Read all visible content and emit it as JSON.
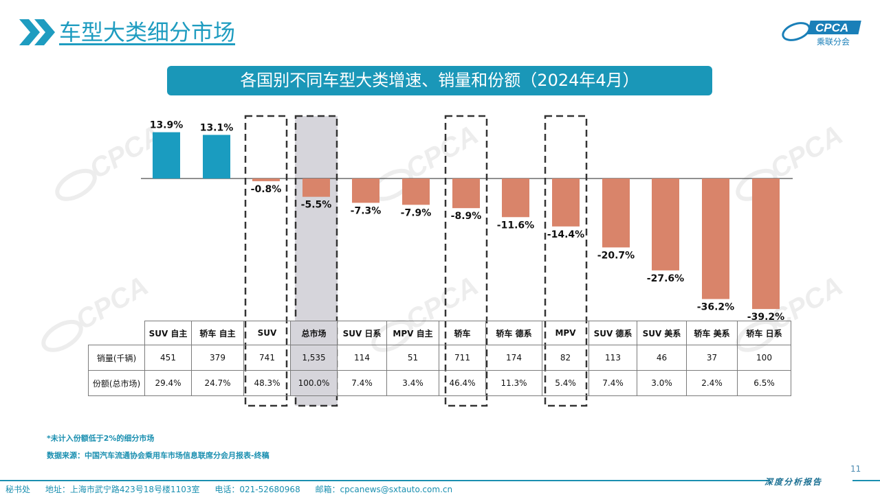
{
  "header": {
    "page_title": "车型大类细分市场",
    "logo_text": "CPCA",
    "logo_sub": "乘联分会"
  },
  "banner": {
    "title": "各国别不同车型大类增速、销量和份额（2024年4月）"
  },
  "colors": {
    "positive": "#1a9cc0",
    "negative": "#d9846a",
    "highlight": "#d6d5db",
    "accent": "#1a97b8"
  },
  "chart_data": {
    "type": "bar",
    "title": "各国别不同车型大类增速、销量和份额（2024年4月）",
    "categories": [
      "SUV 自主",
      "轿车 自主",
      "SUV",
      "总市场",
      "SUV 日系",
      "MPV 自主",
      "轿车",
      "轿车 德系",
      "MPV",
      "SUV 德系",
      "SUV 美系",
      "轿车 美系",
      "轿车 日系"
    ],
    "values": [
      13.9,
      13.1,
      -0.8,
      -5.5,
      -7.3,
      -7.9,
      -8.9,
      -11.6,
      -14.4,
      -20.7,
      -27.6,
      -36.2,
      -39.2
    ],
    "labels": [
      "13.9%",
      "13.1%",
      "-0.8%",
      "-5.5%",
      "-7.3%",
      "-7.9%",
      "-8.9%",
      "-11.6%",
      "-14.4%",
      "-20.7%",
      "-27.6%",
      "-36.2%",
      "-39.2%"
    ],
    "unit": "%",
    "ylim": [
      -40,
      14.5
    ],
    "dashed_boxes": [
      "SUV",
      "总市场",
      "轿车",
      "MPV"
    ],
    "highlighted": [
      "总市场"
    ]
  },
  "table": {
    "header": [
      "",
      "SUV 自主",
      "轿车 自主",
      "SUV",
      "总市场",
      "SUV 日系",
      "MPV 自主",
      "轿车",
      "轿车 德系",
      "MPV",
      "SUV 德系",
      "SUV 美系",
      "轿车 美系",
      "轿车 日系"
    ],
    "rows": [
      {
        "label": "销量(千辆)",
        "cells": [
          "451",
          "379",
          "741",
          "1,535",
          "114",
          "51",
          "711",
          "174",
          "82",
          "113",
          "46",
          "37",
          "100"
        ]
      },
      {
        "label": "份额(总市场)",
        "cells": [
          "29.4%",
          "24.7%",
          "48.3%",
          "100.0%",
          "7.4%",
          "3.4%",
          "46.4%",
          "11.3%",
          "5.4%",
          "7.4%",
          "3.0%",
          "2.4%",
          "6.5%"
        ]
      }
    ]
  },
  "notes": {
    "note1": "*未计入份额低于2%的细分市场",
    "source": "数据来源：中国汽车流通协会乘用车市场信息联席分会月报表-终稿"
  },
  "page_number": "11",
  "footer": {
    "office": "秘书处",
    "address": "地址：上海市武宁路423号18号楼1103室",
    "phone": "电话：021-52680968",
    "email": "邮箱：cpcanews@sxtauto.com.cn",
    "report_tag": "深度分析报告"
  }
}
